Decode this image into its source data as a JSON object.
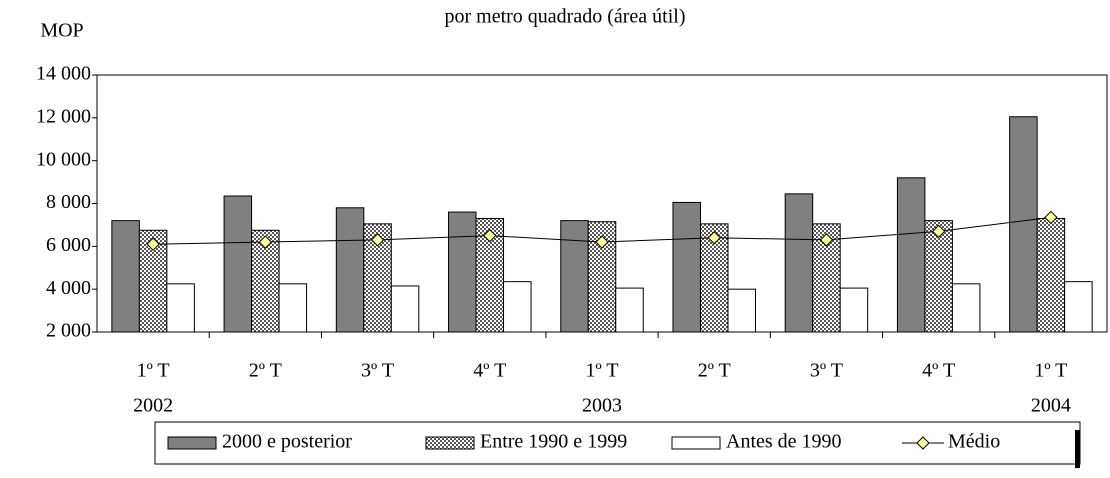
{
  "chart_data": {
    "type": "bar",
    "title": "por metro quadrado (área útil)",
    "y_label": "MOP",
    "categories": [
      [
        "1º T",
        "2002"
      ],
      [
        "2º T",
        null
      ],
      [
        "3º T",
        null
      ],
      [
        "4º T",
        null
      ],
      [
        "1º T",
        "2003"
      ],
      [
        "2º T",
        null
      ],
      [
        "3º T",
        null
      ],
      [
        "4º T",
        null
      ],
      [
        "1º T",
        "2004"
      ]
    ],
    "series": [
      {
        "name": "2000 e posterior",
        "color": "#808080",
        "values": [
          7200,
          8350,
          7800,
          7600,
          7200,
          8050,
          8450,
          9200,
          12050
        ]
      },
      {
        "name": "Entre 1990 e 1999",
        "color": "#9a9a9a",
        "pattern": "checker",
        "values": [
          6750,
          6750,
          7050,
          7300,
          7150,
          7050,
          7050,
          7200,
          7300
        ]
      },
      {
        "name": "Antes de 1990",
        "color": "#ffffff",
        "values": [
          4250,
          4250,
          4150,
          4350,
          4050,
          4000,
          4050,
          4250,
          4350
        ]
      },
      {
        "name": "Médio",
        "type": "line",
        "color": "#000000",
        "marker_color": "#ffff99",
        "values": [
          6100,
          6200,
          6300,
          6500,
          6200,
          6400,
          6300,
          6700,
          7350
        ]
      }
    ],
    "ylim": [
      2000,
      14000
    ],
    "yticks": [
      {
        "value": 2000,
        "label": "2 000"
      },
      {
        "value": 4000,
        "label": "4 000"
      },
      {
        "value": 6000,
        "label": "6 000"
      },
      {
        "value": 8000,
        "label": "8 000"
      },
      {
        "value": 10000,
        "label": "10 000"
      },
      {
        "value": 12000,
        "label": "12 000"
      },
      {
        "value": 14000,
        "label": "14 000"
      }
    ],
    "legend": "bottom"
  }
}
